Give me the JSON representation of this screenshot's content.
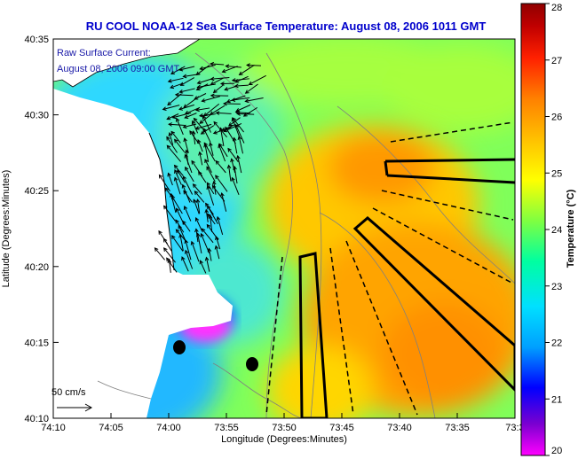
{
  "title": "RU COOL  NOAA-12  Sea Surface Temperature:  August 08, 2006 1011 GMT",
  "annotation": {
    "line1": "Raw Surface Current:",
    "line2": "August 08, 2006 09:00 GMT"
  },
  "scale_label": "50 cm/s",
  "x_axis": {
    "label": "Longitude (Degrees:Minutes)",
    "ticks": [
      "74:10",
      "74:05",
      "74:00",
      "73:55",
      "73:50",
      "73:45",
      "73:40",
      "73:35",
      "73:3"
    ]
  },
  "y_axis": {
    "label": "Latitude (Degrees:Minutes)",
    "ticks": [
      "40:35",
      "40:30",
      "40:25",
      "40:20",
      "40:15",
      "40:10"
    ]
  },
  "colorbar": {
    "label": "Temperature (°C)",
    "ticks": [
      "28",
      "27",
      "26",
      "25",
      "24",
      "23",
      "22",
      "21",
      "20"
    ],
    "colors": [
      "#ff00ff",
      "#7a00d0",
      "#0000ff",
      "#00a0ff",
      "#00e0ff",
      "#00ffa0",
      "#80ff40",
      "#ffff00",
      "#ffc000",
      "#ff8000",
      "#ff2000",
      "#c00000",
      "#900000"
    ]
  }
}
